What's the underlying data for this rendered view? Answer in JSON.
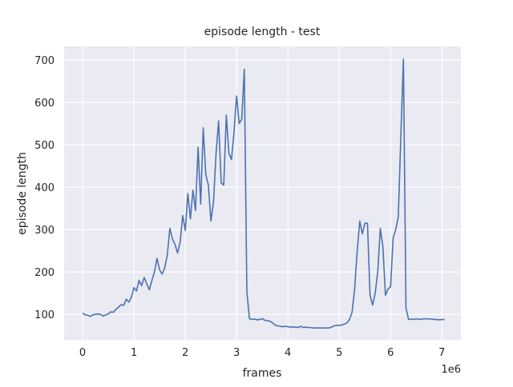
{
  "chart_data": {
    "type": "line",
    "title": "episode length - test",
    "x_label": "frames",
    "y_label": "episode length",
    "x_offset_label": "1e6",
    "x": [
      0,
      0.05,
      0.1,
      0.15,
      0.2,
      0.25,
      0.3,
      0.35,
      0.4,
      0.45,
      0.5,
      0.55,
      0.6,
      0.65,
      0.7,
      0.75,
      0.8,
      0.85,
      0.9,
      0.95,
      1,
      1.05,
      1.1,
      1.15,
      1.2,
      1.25,
      1.3,
      1.35,
      1.4,
      1.45,
      1.5,
      1.55,
      1.6,
      1.65,
      1.7,
      1.75,
      1.8,
      1.85,
      1.9,
      1.95,
      2,
      2.05,
      2.1,
      2.15,
      2.2,
      2.25,
      2.3,
      2.35,
      2.4,
      2.45,
      2.5,
      2.55,
      2.6,
      2.65,
      2.7,
      2.75,
      2.8,
      2.85,
      2.9,
      2.95,
      3,
      3.05,
      3.1,
      3.15,
      3.2,
      3.25,
      3.3,
      3.35,
      3.4,
      3.45,
      3.5,
      3.55,
      3.6,
      3.65,
      3.7,
      3.75,
      3.8,
      3.85,
      3.9,
      3.95,
      4,
      4.05,
      4.1,
      4.15,
      4.2,
      4.25,
      4.3,
      4.35,
      4.4,
      4.45,
      4.5,
      4.55,
      4.6,
      4.65,
      4.7,
      4.75,
      4.8,
      4.85,
      4.9,
      4.95,
      5,
      5.05,
      5.1,
      5.15,
      5.2,
      5.25,
      5.3,
      5.35,
      5.4,
      5.45,
      5.5,
      5.55,
      5.6,
      5.65,
      5.7,
      5.75,
      5.8,
      5.85,
      5.9,
      5.95,
      6,
      6.05,
      6.1,
      6.15,
      6.2,
      6.25,
      6.3,
      6.35,
      6.4,
      6.45,
      6.5,
      6.55,
      6.6,
      6.65,
      6.7,
      6.75,
      6.8,
      6.85,
      6.9,
      6.95,
      7,
      7.05
    ],
    "series": [
      {
        "name": "episode length",
        "color": "#4c72b0",
        "values": [
          103,
          99,
          98,
          95,
          99,
          100,
          101,
          100,
          96,
          99,
          101,
          106,
          105,
          112,
          117,
          123,
          121,
          136,
          129,
          140,
          163,
          155,
          180,
          168,
          187,
          172,
          158,
          180,
          200,
          232,
          205,
          195,
          210,
          240,
          303,
          278,
          265,
          245,
          270,
          333,
          298,
          385,
          325,
          393,
          345,
          494,
          360,
          540,
          430,
          405,
          320,
          365,
          480,
          556,
          410,
          405,
          570,
          480,
          465,
          530,
          615,
          550,
          560,
          678,
          155,
          90,
          88,
          89,
          87,
          88,
          90,
          86,
          85,
          84,
          80,
          75,
          73,
          72,
          71,
          72,
          71,
          70,
          70,
          70,
          69,
          72,
          69,
          70,
          69,
          69,
          68,
          68,
          68,
          68,
          68,
          68,
          68,
          70,
          73,
          74,
          74,
          75,
          77,
          80,
          88,
          105,
          160,
          250,
          320,
          290,
          315,
          315,
          145,
          122,
          150,
          200,
          303,
          260,
          145,
          160,
          165,
          280,
          300,
          330,
          520,
          702,
          115,
          88,
          89,
          88,
          90,
          88,
          89,
          89,
          90,
          89,
          89,
          88,
          88,
          87,
          88,
          88
        ]
      }
    ],
    "xlim": [
      -0.36,
      7.37
    ],
    "ylim": [
      40,
      732
    ],
    "xticks": [
      0,
      1,
      2,
      3,
      4,
      5,
      6,
      7
    ],
    "yticks": [
      100,
      200,
      300,
      400,
      500,
      600,
      700
    ],
    "grid": true
  }
}
